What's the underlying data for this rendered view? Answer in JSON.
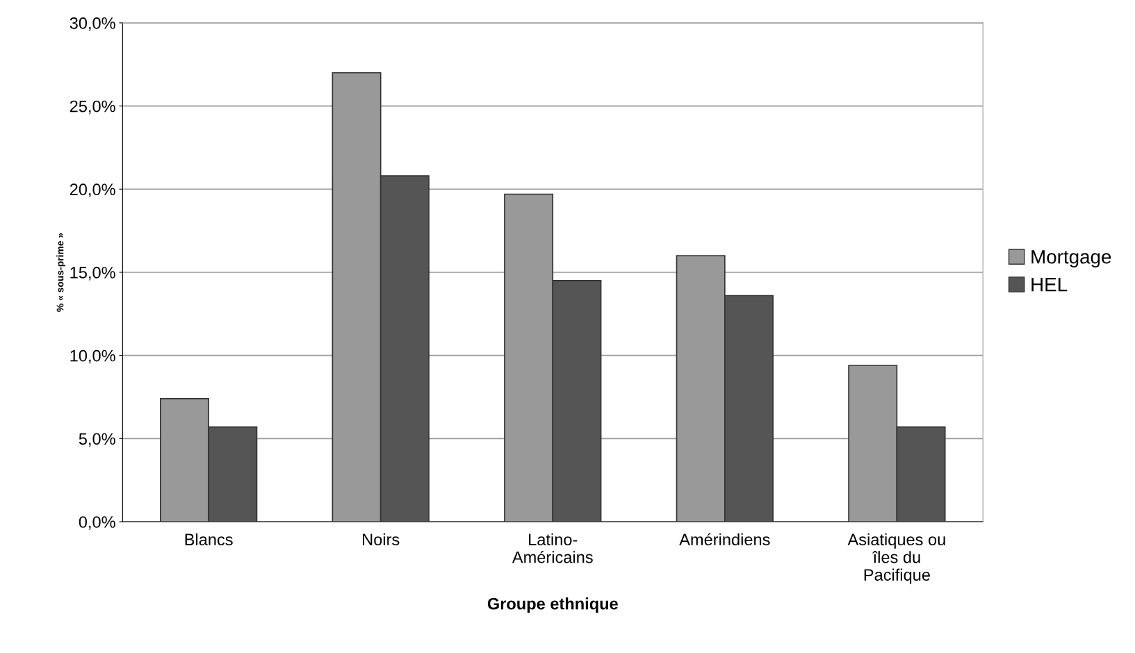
{
  "chart_data": {
    "type": "bar",
    "xlabel": "Groupe ethnique",
    "ylabel": "% « sous-prime »",
    "categories": [
      "Blancs",
      "Noirs",
      "Latino-\nAméricains",
      "Amérindiens",
      "Asiatiques ou\nîles du\nPacifique"
    ],
    "series": [
      {
        "name": "Mortgage",
        "color": "#999999",
        "values": [
          7.4,
          27.0,
          19.7,
          16.0,
          9.4
        ]
      },
      {
        "name": "HEL",
        "color": "#555555",
        "values": [
          5.7,
          20.8,
          14.5,
          13.6,
          5.7
        ]
      }
    ],
    "ylim": [
      0,
      30
    ],
    "yticks": [
      {
        "value": 0,
        "label": "0,0%"
      },
      {
        "value": 5,
        "label": "5,0%"
      },
      {
        "value": 10,
        "label": "10,0%"
      },
      {
        "value": 15,
        "label": "15,0%"
      },
      {
        "value": 20,
        "label": "20,0%"
      },
      {
        "value": 25,
        "label": "25,0%"
      },
      {
        "value": 30,
        "label": "30,0%"
      }
    ],
    "grid": "y",
    "legend": "right"
  }
}
